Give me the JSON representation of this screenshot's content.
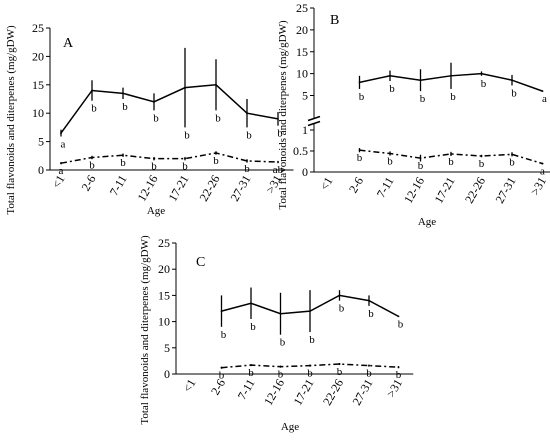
{
  "chart_data": [
    {
      "type": "line",
      "panel_label": "A",
      "xlabel": "Age",
      "ylabel": "Total flavonoids and diterpenes (mg/gDW)",
      "categories": [
        "<1",
        "2-6",
        "7-11",
        "12-16",
        "17-21",
        "22-26",
        "27-31",
        ">31"
      ],
      "ylim": [
        0,
        25
      ],
      "yticks": [
        "0",
        "5",
        "10",
        "15",
        "20",
        "25"
      ],
      "series": [
        {
          "style": "solid",
          "values": [
            6.5,
            14,
            13.5,
            12,
            14.5,
            15,
            10,
            9
          ],
          "errors": [
            0.6,
            1.8,
            1,
            1.5,
            7,
            4.5,
            2.5,
            1.2
          ],
          "labels": [
            "a",
            "b",
            "b",
            "b",
            "b",
            "b",
            "b",
            "b"
          ]
        },
        {
          "style": "dash-dot",
          "values": [
            1.2,
            2.2,
            2.6,
            2,
            2,
            3,
            1.6,
            1.4
          ],
          "errors": [
            0.2,
            0.3,
            0.3,
            0.3,
            0.3,
            0.3,
            0.3,
            0.2
          ],
          "labels": [
            "a",
            "b",
            "b",
            "b",
            "b",
            "b",
            "b",
            "ab"
          ]
        }
      ]
    },
    {
      "type": "line",
      "panel_label": "B",
      "xlabel": "Age",
      "ylabel": "Total flavonoids and diterpenes (mg/gDW)",
      "categories": [
        "<1",
        "2-6",
        "7-11",
        "12-16",
        "17-21",
        "22-26",
        "27-31",
        ">31"
      ],
      "axis_break": true,
      "upper_ylim": [
        1,
        25
      ],
      "upper_yticks": [
        "5",
        "10",
        "15",
        "20",
        "25"
      ],
      "lower_ylim": [
        0,
        1
      ],
      "lower_yticks": [
        "0",
        "0.5",
        "1"
      ],
      "series": [
        {
          "style": "solid",
          "x": [
            "2-6",
            "7-11",
            "12-16",
            "17-21",
            "22-26",
            "27-31",
            ">31"
          ],
          "values": [
            8,
            9.5,
            8.5,
            9.5,
            10,
            8.5,
            6
          ],
          "errors": [
            1.5,
            1.2,
            2.5,
            3,
            0.5,
            1.2,
            0
          ],
          "labels": [
            "b",
            "b",
            "b",
            "b",
            "b",
            "b",
            "a"
          ]
        },
        {
          "style": "dash-dot",
          "x": [
            "2-6",
            "7-11",
            "12-16",
            "17-21",
            "22-26",
            "27-31",
            ">31"
          ],
          "values": [
            0.52,
            0.44,
            0.33,
            0.43,
            0.38,
            0.42,
            0.2
          ],
          "errors": [
            0.05,
            0.05,
            0.08,
            0.05,
            0.03,
            0.05,
            0.02
          ],
          "labels": [
            "b",
            "b",
            "b",
            "b",
            "b",
            "b",
            "a"
          ]
        }
      ]
    },
    {
      "type": "line",
      "panel_label": "C",
      "xlabel": "Age",
      "ylabel": "Total flavonoids and diterpenes (mg/gDW)",
      "categories": [
        "<1",
        "2-6",
        "7-11",
        "12-16",
        "17-21",
        "22-26",
        "27-31",
        ">31"
      ],
      "ylim": [
        0,
        25
      ],
      "yticks": [
        "0",
        "5",
        "10",
        "15",
        "20",
        "25"
      ],
      "series": [
        {
          "style": "solid",
          "x": [
            "2-6",
            "7-11",
            "12-16",
            "17-21",
            "22-26",
            "27-31",
            ">31"
          ],
          "values": [
            12,
            13.5,
            11.5,
            12,
            15,
            14,
            11
          ],
          "errors": [
            3,
            3,
            4,
            4,
            1,
            1,
            0
          ],
          "labels": [
            "b",
            "b",
            "b",
            "b",
            "b",
            "b",
            "b"
          ]
        },
        {
          "style": "dash-dot",
          "x": [
            "2-6",
            "7-11",
            "12-16",
            "17-21",
            "22-26",
            "27-31",
            ">31"
          ],
          "values": [
            1.2,
            1.7,
            1.4,
            1.6,
            1.9,
            1.6,
            1.3
          ],
          "errors": [
            0.2,
            0.2,
            0.2,
            0.2,
            0.2,
            0.2,
            0.2
          ],
          "labels": [
            "b",
            "b",
            "b",
            "b",
            "b",
            "b",
            "b"
          ]
        }
      ]
    }
  ]
}
